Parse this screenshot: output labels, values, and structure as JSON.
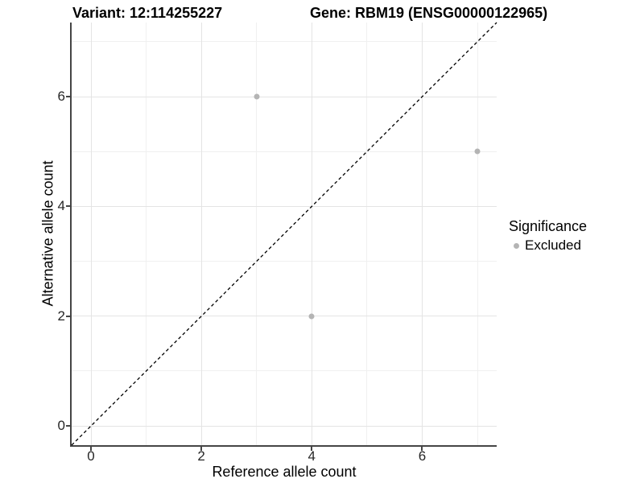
{
  "chart_data": {
    "type": "scatter",
    "title_variant": "Variant: 12:114255227",
    "title_gene": "Gene: RBM19 (ENSG00000122965)",
    "xlabel": "Reference allele count",
    "ylabel": "Alternative allele count",
    "x_breaks": [
      0,
      2,
      4,
      6
    ],
    "y_breaks": [
      0,
      2,
      4,
      6
    ],
    "x_minor_breaks": [
      1,
      3,
      5,
      7
    ],
    "y_minor_breaks": [
      1,
      3,
      5,
      7
    ],
    "xlim": [
      -0.35,
      7.35
    ],
    "ylim": [
      -0.35,
      7.35
    ],
    "grid": true,
    "identity_line": {
      "style": "dashed",
      "color": "#000000",
      "slope": 1,
      "intercept": 0
    },
    "series": [
      {
        "name": "Excluded",
        "color": "#b4b4b4",
        "points": [
          [
            3,
            6
          ],
          [
            4,
            2
          ],
          [
            7,
            5
          ]
        ]
      }
    ],
    "legend": {
      "title": "Significance",
      "position": "right",
      "items": [
        {
          "label": "Excluded",
          "color": "#b4b4b4"
        }
      ]
    }
  },
  "style": {
    "axis_line_color": "#454545",
    "grid_major_color": "#e4e4e4",
    "grid_minor_color": "#f0f0f0",
    "text_color": "#000000"
  }
}
